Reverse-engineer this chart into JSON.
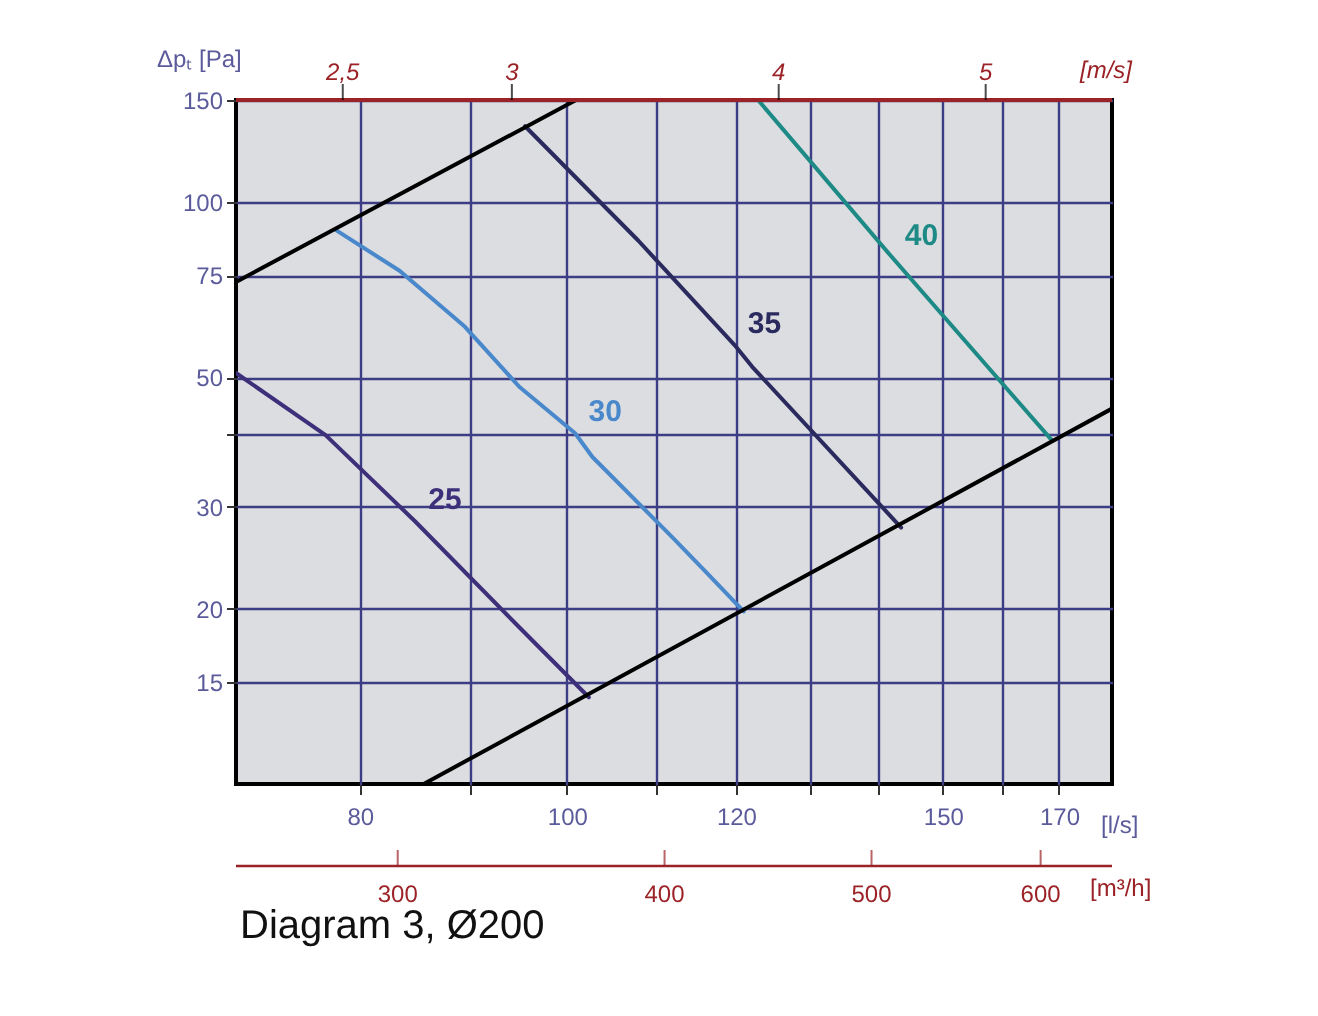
{
  "chart_data": {
    "type": "line",
    "xlabel": "[l/s]",
    "ylabel": "Δpₜ [Pa]",
    "xlim": [
      70,
      180
    ],
    "xticks": [
      80,
      {
        "value": 90,
        "label": null
      },
      100,
      {
        "value": 110,
        "label": null
      },
      120,
      {
        "value": 130,
        "label": null
      },
      {
        "value": 140,
        "label": null
      },
      150,
      {
        "value": 160,
        "label": null
      },
      170
    ],
    "ylim": [
      10,
      150
    ],
    "yticks": [
      15,
      20,
      30,
      {
        "value": 40,
        "label": null
      },
      50,
      75,
      100,
      150
    ],
    "log": "xy",
    "grid": true,
    "legend": false,
    "series": [
      {
        "name": "25",
        "color": "#3d2f7a",
        "x": [
          70,
          77.1,
          84.9,
          95,
          102.4
        ],
        "values": [
          50.9,
          39.8,
          28.3,
          18.6,
          14.1
        ]
      },
      {
        "name": "30",
        "color": "#4a88cc",
        "x": [
          78,
          83.5,
          89.6,
          95,
          100.9,
          102.8,
          112,
          116.5,
          121
        ],
        "values": [
          89.5,
          76.3,
          61.1,
          48.2,
          40.1,
          36.5,
          26.6,
          22.9,
          19.8
        ]
      },
      {
        "name": "35",
        "color": "#2a2a5e",
        "x": [
          95.6,
          108,
          119.8,
          122.1,
          143.4
        ],
        "values": [
          135.2,
          86,
          56.9,
          52.2,
          27.6
        ]
      },
      {
        "name": "40",
        "color": "#1d8a86",
        "x": [
          122.9,
          141.9,
          168.8
        ],
        "values": [
          150,
          80.7,
          38.9
        ]
      },
      {
        "color": "#000000",
        "x": [
          70,
          101
        ],
        "values": [
          73,
          150
        ]
      },
      {
        "color": "#000000",
        "x": [
          85.7,
          180
        ],
        "values": [
          10,
          44.2
        ]
      }
    ],
    "annotations": [
      "2,5",
      "3",
      "4",
      "5",
      "[m/s]",
      "300",
      "400",
      "500",
      "600",
      "[m³/h]",
      "Diagram 3, Ø200"
    ]
  }
}
